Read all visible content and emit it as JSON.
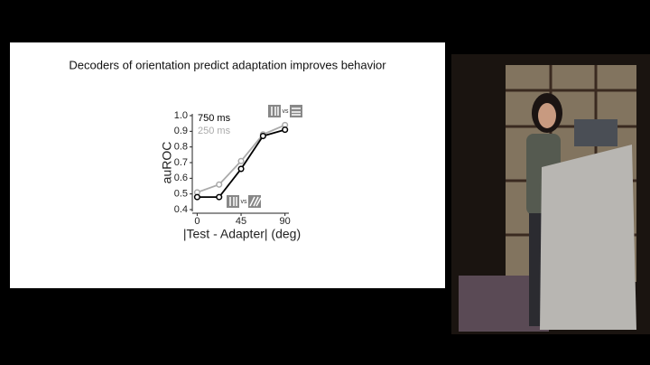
{
  "chart_data": {
    "type": "line",
    "title": "Decoders of orientation predict adaptation improves behavior",
    "x_label": "|Test - Adapter| (deg)",
    "y_label": "auROC",
    "x": [
      0,
      22.5,
      45,
      67.5,
      90
    ],
    "series": [
      {
        "name": "750 ms",
        "color": "#000000",
        "values": [
          0.48,
          0.48,
          0.66,
          0.87,
          0.91
        ]
      },
      {
        "name": "250 ms",
        "color": "#aaaaaa",
        "values": [
          0.51,
          0.56,
          0.71,
          0.88,
          0.94
        ]
      }
    ],
    "xlim": [
      -5,
      94
    ],
    "xticks": [
      0,
      45,
      90
    ],
    "ylim": [
      0.4,
      1.0
    ],
    "yticks": [
      {
        "value": 1,
        "label": "1.0"
      },
      0.9,
      0.8,
      0.7,
      0.6,
      0.5,
      0.4
    ],
    "annotations": [
      "vs",
      "vs"
    ]
  }
}
